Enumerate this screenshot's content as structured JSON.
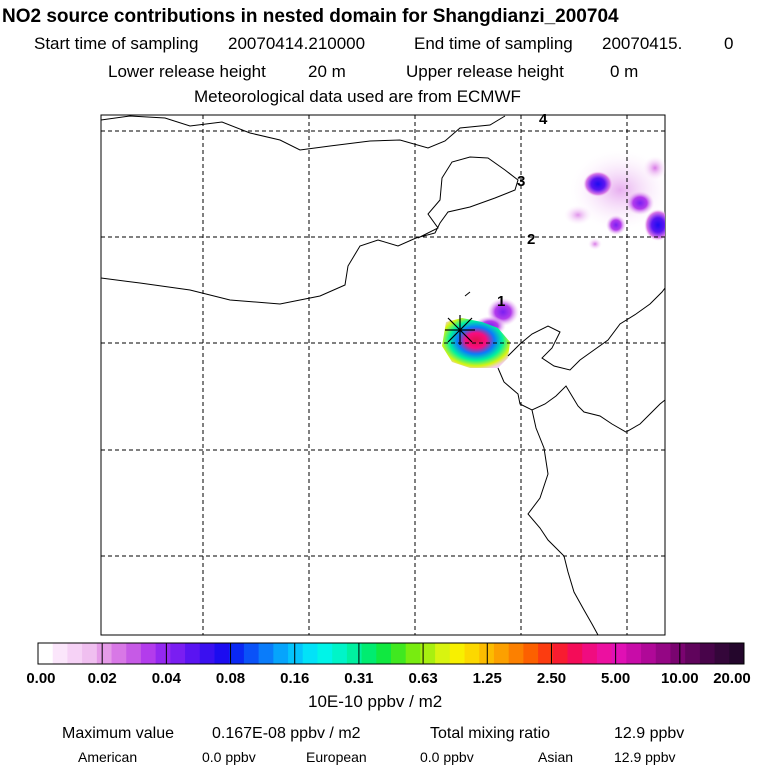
{
  "title": "NO2 source contributions in nested domain for Shangdianzi_200704",
  "header": {
    "start_label": "Start time of sampling",
    "start_value": "20070414.210000",
    "end_label": "End time of sampling",
    "end_value": "20070415.",
    "end_suffix": "0",
    "lower_label": "Lower release height",
    "lower_value": "20 m",
    "upper_label": "Upper release height",
    "upper_value": "0 m",
    "met_text": "Meteorological data used are from ECMWF"
  },
  "map": {
    "trajectory_labels": [
      "1",
      "2",
      "3",
      "4"
    ],
    "colors": {
      "coast": "#000000",
      "grid": "#000000",
      "station_marker": "#000000"
    }
  },
  "colorbar": {
    "unit": "10E-10 ppbv / m2",
    "tick_labels": [
      "0.00",
      "0.02",
      "0.04",
      "0.08",
      "0.16",
      "0.31",
      "0.63",
      "1.25",
      "2.50",
      "5.00",
      "10.00",
      "20.00"
    ],
    "colors": [
      "#ffffff",
      "#fbe6fb",
      "#f6d2f6",
      "#f0bff0",
      "#e59be8",
      "#d878e6",
      "#c65ae6",
      "#b33cec",
      "#9428f0",
      "#7a1ef2",
      "#5a14f2",
      "#3a10f0",
      "#1c0cf0",
      "#0a28f4",
      "#0a52f8",
      "#0a7cfa",
      "#06a4fc",
      "#04c4fc",
      "#02e2f8",
      "#00f4e8",
      "#00f4c8",
      "#00f0a0",
      "#00ec70",
      "#10e840",
      "#40e820",
      "#78ec10",
      "#a8f010",
      "#d8f410",
      "#f8f000",
      "#fcd800",
      "#fcbc00",
      "#fca000",
      "#fc8000",
      "#fc6000",
      "#fc3c10",
      "#f81c30",
      "#f40c58",
      "#f00c80",
      "#ec10a0",
      "#e010b4",
      "#c80ca8",
      "#b00898",
      "#940684",
      "#7a0470",
      "#60045c",
      "#48044a",
      "#34063a",
      "#24062c"
    ]
  },
  "footer": {
    "max_label": "Maximum value",
    "max_value": "0.167E-08 ppbv / m2",
    "total_label": "Total mixing ratio",
    "total_value": "12.9 ppbv",
    "regions": [
      {
        "name": "American",
        "value": "0.0 ppbv"
      },
      {
        "name": "European",
        "value": "0.0 ppbv"
      },
      {
        "name": "Asian",
        "value": "12.9 ppbv"
      }
    ]
  }
}
